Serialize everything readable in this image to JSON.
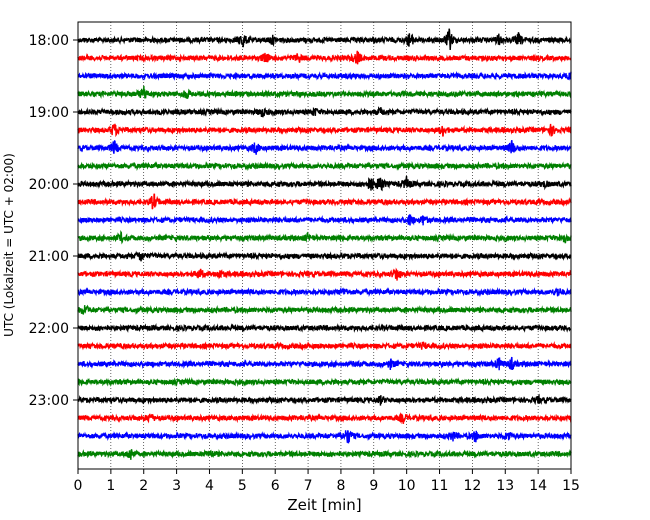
{
  "chart_data": {
    "type": "line",
    "xlabel": "Zeit  [min]",
    "ylabel": "UTC (Lokalzeit = UTC + 02:00)",
    "xlim": [
      0,
      15
    ],
    "x_ticks": [
      "0",
      "1",
      "2",
      "3",
      "4",
      "5",
      "6",
      "7",
      "8",
      "9",
      "10",
      "11",
      "12",
      "13",
      "14",
      "15"
    ],
    "y_tick_labels": [
      "18:00",
      "19:00",
      "20:00",
      "21:00",
      "22:00",
      "23:00"
    ],
    "grid": "vertical dotted at each minute",
    "trace_interval_minutes": 15,
    "colors_cycle": [
      "#000000",
      "#ff0000",
      "#0000ff",
      "#008000"
    ],
    "traces": [
      {
        "start": "18:00",
        "color": "#000000",
        "events": [
          [
            5.0,
            1.0
          ],
          [
            5.9,
            0.5
          ],
          [
            10.1,
            0.9
          ],
          [
            11.3,
            1.4
          ],
          [
            12.8,
            0.5
          ],
          [
            13.4,
            0.7
          ]
        ]
      },
      {
        "start": "18:15",
        "color": "#ff0000",
        "events": [
          [
            5.7,
            0.6
          ],
          [
            6.7,
            0.5
          ],
          [
            8.5,
            0.8
          ]
        ]
      },
      {
        "start": "18:30",
        "color": "#0000ff",
        "events": [
          [
            15.0,
            0.5
          ]
        ]
      },
      {
        "start": "18:45",
        "color": "#008000",
        "events": [
          [
            2.0,
            0.9
          ],
          [
            3.3,
            0.5
          ]
        ]
      },
      {
        "start": "19:00",
        "color": "#000000",
        "events": [
          [
            5.6,
            0.5
          ],
          [
            7.2,
            0.4
          ],
          [
            9.2,
            0.4
          ]
        ]
      },
      {
        "start": "19:15",
        "color": "#ff0000",
        "events": [
          [
            1.1,
            0.8
          ],
          [
            11.1,
            0.6
          ],
          [
            14.4,
            0.6
          ]
        ]
      },
      {
        "start": "19:30",
        "color": "#0000ff",
        "events": [
          [
            1.1,
            0.8
          ],
          [
            5.4,
            0.7
          ],
          [
            13.2,
            0.8
          ]
        ]
      },
      {
        "start": "19:45",
        "color": "#008000",
        "events": []
      },
      {
        "start": "20:00",
        "color": "#000000",
        "events": [
          [
            8.9,
            0.9
          ],
          [
            9.2,
            1.0
          ],
          [
            10.0,
            0.7
          ],
          [
            14.2,
            0.3
          ]
        ]
      },
      {
        "start": "20:15",
        "color": "#ff0000",
        "events": [
          [
            2.3,
            1.0
          ]
        ]
      },
      {
        "start": "20:30",
        "color": "#0000ff",
        "events": [
          [
            10.1,
            0.6
          ],
          [
            10.5,
            0.5
          ]
        ]
      },
      {
        "start": "20:45",
        "color": "#008000",
        "events": [
          [
            1.3,
            0.5
          ],
          [
            7.0,
            0.4
          ],
          [
            14.8,
            0.5
          ]
        ]
      },
      {
        "start": "21:00",
        "color": "#000000",
        "events": [
          [
            1.9,
            0.6
          ]
        ]
      },
      {
        "start": "21:15",
        "color": "#ff0000",
        "events": [
          [
            3.7,
            0.6
          ],
          [
            4.3,
            0.4
          ],
          [
            9.7,
            0.8
          ]
        ]
      },
      {
        "start": "21:30",
        "color": "#0000ff",
        "events": [
          [
            8.1,
            0.4
          ],
          [
            14.6,
            0.5
          ]
        ]
      },
      {
        "start": "21:45",
        "color": "#008000",
        "events": [
          [
            0.2,
            0.6
          ]
        ]
      },
      {
        "start": "22:00",
        "color": "#000000",
        "events": []
      },
      {
        "start": "22:15",
        "color": "#ff0000",
        "events": [
          [
            10.5,
            0.3
          ]
        ]
      },
      {
        "start": "22:30",
        "color": "#0000ff",
        "events": [
          [
            9.5,
            0.5
          ],
          [
            12.8,
            0.7
          ],
          [
            13.2,
            0.6
          ]
        ]
      },
      {
        "start": "22:45",
        "color": "#008000",
        "events": []
      },
      {
        "start": "23:00",
        "color": "#000000",
        "events": [
          [
            9.2,
            0.4
          ],
          [
            14.0,
            0.3
          ]
        ]
      },
      {
        "start": "23:15",
        "color": "#ff0000",
        "events": [
          [
            2.2,
            0.5
          ],
          [
            9.9,
            0.5
          ]
        ]
      },
      {
        "start": "23:30",
        "color": "#0000ff",
        "events": [
          [
            8.2,
            1.0
          ],
          [
            11.4,
            0.5
          ],
          [
            12.1,
            0.6
          ],
          [
            13.1,
            0.5
          ]
        ]
      },
      {
        "start": "23:45",
        "color": "#008000",
        "events": [
          [
            1.6,
            0.7
          ],
          [
            4.0,
            0.4
          ]
        ]
      }
    ]
  }
}
